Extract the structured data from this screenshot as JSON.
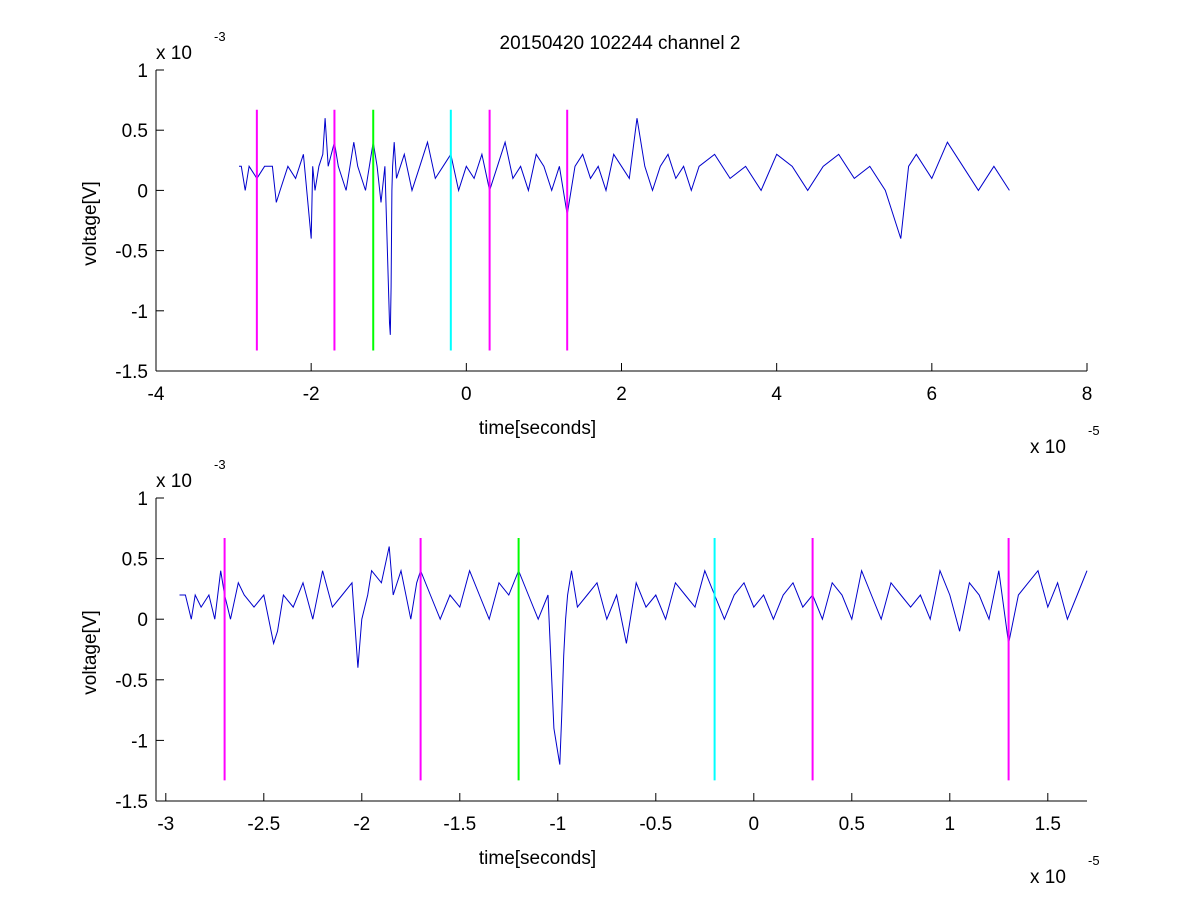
{
  "figure": {
    "title": "20150420 102244 channel 2"
  },
  "chart_data": [
    {
      "type": "line",
      "xlabel": "time[seconds]",
      "ylabel": "voltage[V]",
      "x_exponent_label": "x 10",
      "x_exponent": "-5",
      "y_exponent_label": "x 10",
      "y_exponent": "-3",
      "xlim": [
        -4,
        8
      ],
      "ylim": [
        -1.5,
        1
      ],
      "xticks": [
        -4,
        -2,
        0,
        2,
        4,
        6,
        8
      ],
      "xtick_labels": [
        "-4",
        "-2",
        "0",
        "2",
        "4",
        "6",
        "8"
      ],
      "yticks": [
        -1.5,
        -1,
        -0.5,
        0,
        0.5,
        1
      ],
      "ytick_labels": [
        "-1.5",
        "-1",
        "-0.5",
        "0",
        "0.5",
        "1"
      ],
      "grid": false,
      "signal": {
        "color": "#0000cc",
        "x": [
          -2.93,
          -2.9,
          -2.85,
          -2.8,
          -2.7,
          -2.6,
          -2.5,
          -2.45,
          -2.4,
          -2.3,
          -2.2,
          -2.1,
          -2.0,
          -1.98,
          -1.95,
          -1.9,
          -1.85,
          -1.82,
          -1.78,
          -1.7,
          -1.65,
          -1.55,
          -1.5,
          -1.45,
          -1.4,
          -1.3,
          -1.2,
          -1.15,
          -1.1,
          -1.05,
          -1.0,
          -0.99,
          -0.98,
          -0.97,
          -0.96,
          -0.95,
          -0.93,
          -0.9,
          -0.85,
          -0.8,
          -0.7,
          -0.6,
          -0.5,
          -0.4,
          -0.3,
          -0.2,
          -0.1,
          0.0,
          0.1,
          0.2,
          0.3,
          0.4,
          0.5,
          0.6,
          0.7,
          0.8,
          0.9,
          1.0,
          1.1,
          1.2,
          1.3,
          1.4,
          1.5,
          1.6,
          1.7,
          1.8,
          1.9,
          2.0,
          2.1,
          2.2,
          2.3,
          2.4,
          2.5,
          2.6,
          2.7,
          2.8,
          2.9,
          3.0,
          3.2,
          3.4,
          3.6,
          3.8,
          4.0,
          4.2,
          4.4,
          4.6,
          4.8,
          5.0,
          5.2,
          5.4,
          5.6,
          5.7,
          5.8,
          6.0,
          6.2,
          6.4,
          6.6,
          6.8,
          7.0
        ],
        "y": [
          0.2,
          0.2,
          0.0,
          0.2,
          0.1,
          0.2,
          0.2,
          -0.1,
          0.0,
          0.2,
          0.1,
          0.3,
          -0.4,
          0.2,
          0.0,
          0.2,
          0.3,
          0.6,
          0.2,
          0.4,
          0.2,
          0.0,
          0.2,
          0.4,
          0.2,
          0.0,
          0.4,
          0.2,
          -0.1,
          0.2,
          -0.9,
          -1.1,
          -1.2,
          -0.8,
          0.0,
          0.2,
          0.4,
          0.1,
          0.2,
          0.3,
          0.0,
          0.2,
          0.4,
          0.1,
          0.2,
          0.3,
          0.0,
          0.2,
          0.1,
          0.3,
          0.0,
          0.2,
          0.4,
          0.1,
          0.2,
          0.0,
          0.3,
          0.2,
          0.0,
          0.2,
          -0.2,
          0.2,
          0.3,
          0.1,
          0.2,
          0.0,
          0.3,
          0.2,
          0.1,
          0.6,
          0.2,
          0.0,
          0.2,
          0.3,
          0.1,
          0.2,
          0.0,
          0.2,
          0.3,
          0.1,
          0.2,
          0.0,
          0.3,
          0.2,
          0.0,
          0.2,
          0.3,
          0.1,
          0.2,
          0.0,
          -0.4,
          0.2,
          0.3,
          0.1,
          0.4,
          0.2,
          0.0,
          0.2,
          0.0
        ]
      },
      "markers": [
        {
          "x": -2.7,
          "color": "#ff00ff"
        },
        {
          "x": -1.7,
          "color": "#ff00ff"
        },
        {
          "x": -1.2,
          "color": "#00ff00"
        },
        {
          "x": -0.2,
          "color": "#00ffff"
        },
        {
          "x": 0.3,
          "color": "#ff00ff"
        },
        {
          "x": 1.3,
          "color": "#ff00ff"
        }
      ],
      "marker_y_range": [
        -1.33,
        0.67
      ]
    },
    {
      "type": "line",
      "xlabel": "time[seconds]",
      "ylabel": "voltage[V]",
      "x_exponent_label": "x 10",
      "x_exponent": "-5",
      "y_exponent_label": "x 10",
      "y_exponent": "-3",
      "xlim": [
        -3.05,
        1.7
      ],
      "ylim": [
        -1.5,
        1
      ],
      "xticks": [
        -3,
        -2.5,
        -2,
        -1.5,
        -1,
        -0.5,
        0,
        0.5,
        1,
        1.5
      ],
      "xtick_labels": [
        "-3",
        "-2.5",
        "-2",
        "-1.5",
        "-1",
        "-0.5",
        "0",
        "0.5",
        "1",
        "1.5"
      ],
      "yticks": [
        -1.5,
        -1,
        -0.5,
        0,
        0.5,
        1
      ],
      "ytick_labels": [
        "-1.5",
        "-1",
        "-0.5",
        "0",
        "0.5",
        "1"
      ],
      "grid": false,
      "signal": {
        "color": "#0000cc",
        "x": [
          -2.93,
          -2.9,
          -2.87,
          -2.85,
          -2.82,
          -2.78,
          -2.75,
          -2.72,
          -2.7,
          -2.67,
          -2.63,
          -2.6,
          -2.55,
          -2.5,
          -2.45,
          -2.43,
          -2.4,
          -2.35,
          -2.3,
          -2.25,
          -2.2,
          -2.15,
          -2.1,
          -2.05,
          -2.02,
          -2.0,
          -1.97,
          -1.95,
          -1.9,
          -1.86,
          -1.84,
          -1.8,
          -1.75,
          -1.72,
          -1.7,
          -1.65,
          -1.6,
          -1.55,
          -1.5,
          -1.45,
          -1.4,
          -1.35,
          -1.3,
          -1.25,
          -1.2,
          -1.15,
          -1.1,
          -1.05,
          -1.02,
          -1.0,
          -0.99,
          -0.98,
          -0.97,
          -0.96,
          -0.95,
          -0.93,
          -0.9,
          -0.85,
          -0.8,
          -0.75,
          -0.7,
          -0.65,
          -0.6,
          -0.55,
          -0.5,
          -0.45,
          -0.4,
          -0.35,
          -0.3,
          -0.25,
          -0.2,
          -0.15,
          -0.1,
          -0.05,
          0.0,
          0.05,
          0.1,
          0.15,
          0.2,
          0.25,
          0.3,
          0.35,
          0.4,
          0.45,
          0.5,
          0.55,
          0.6,
          0.65,
          0.7,
          0.75,
          0.8,
          0.85,
          0.9,
          0.95,
          1.0,
          1.05,
          1.1,
          1.15,
          1.2,
          1.25,
          1.3,
          1.35,
          1.4,
          1.45,
          1.5,
          1.55,
          1.6,
          1.65,
          1.7
        ],
        "y": [
          0.2,
          0.2,
          0.0,
          0.2,
          0.1,
          0.2,
          0.0,
          0.4,
          0.2,
          0.0,
          0.3,
          0.2,
          0.1,
          0.2,
          -0.2,
          -0.1,
          0.2,
          0.1,
          0.3,
          0.0,
          0.4,
          0.1,
          0.2,
          0.3,
          -0.4,
          0.0,
          0.2,
          0.4,
          0.3,
          0.6,
          0.2,
          0.4,
          0.0,
          0.3,
          0.4,
          0.2,
          0.0,
          0.2,
          0.1,
          0.4,
          0.2,
          0.0,
          0.3,
          0.2,
          0.4,
          0.2,
          0.0,
          0.2,
          -0.9,
          -1.1,
          -1.2,
          -0.8,
          -0.3,
          0.0,
          0.2,
          0.4,
          0.1,
          0.2,
          0.3,
          0.0,
          0.2,
          -0.2,
          0.3,
          0.1,
          0.2,
          0.0,
          0.3,
          0.2,
          0.1,
          0.4,
          0.2,
          0.0,
          0.2,
          0.3,
          0.1,
          0.2,
          0.0,
          0.2,
          0.3,
          0.1,
          0.2,
          0.0,
          0.3,
          0.2,
          0.0,
          0.4,
          0.2,
          0.0,
          0.3,
          0.2,
          0.1,
          0.2,
          0.0,
          0.4,
          0.2,
          -0.1,
          0.3,
          0.2,
          0.0,
          0.4,
          -0.2,
          0.2,
          0.3,
          0.4,
          0.1,
          0.3,
          0.0,
          0.2,
          0.4
        ]
      },
      "markers": [
        {
          "x": -2.7,
          "color": "#ff00ff"
        },
        {
          "x": -1.7,
          "color": "#ff00ff"
        },
        {
          "x": -1.2,
          "color": "#00ff00"
        },
        {
          "x": -0.2,
          "color": "#00ffff"
        },
        {
          "x": 0.3,
          "color": "#ff00ff"
        },
        {
          "x": 1.3,
          "color": "#ff00ff"
        }
      ],
      "marker_y_range": [
        -1.33,
        0.67
      ]
    }
  ]
}
